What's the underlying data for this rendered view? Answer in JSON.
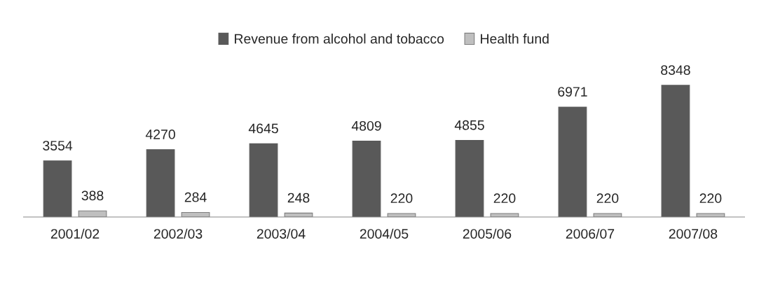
{
  "chart_data": {
    "type": "bar",
    "categories": [
      "2001/02",
      "2002/03",
      "2003/04",
      "2004/05",
      "2005/06",
      "2006/07",
      "2007/08"
    ],
    "series": [
      {
        "name": "Revenue from alcohol and tobacco",
        "color": "#595959",
        "values": [
          3554,
          4270,
          4645,
          4809,
          4855,
          6971,
          8348
        ]
      },
      {
        "name": "Health fund",
        "color": "#bfbfbf",
        "values": [
          388,
          284,
          248,
          220,
          220,
          220,
          220
        ]
      }
    ],
    "data_labels": true,
    "legend": "top",
    "grid": false
  }
}
